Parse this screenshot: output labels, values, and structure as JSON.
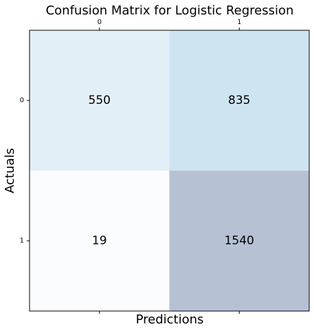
{
  "chart_data": {
    "type": "heatmap",
    "title": "Confusion Matrix for Logistic Regression",
    "xlabel": "Predictions",
    "ylabel": "Actuals",
    "x_categories": [
      "0",
      "1"
    ],
    "y_categories": [
      "0",
      "1"
    ],
    "values": [
      [
        550,
        835
      ],
      [
        19,
        1540
      ]
    ],
    "colormap": "Blues",
    "cell_colors": [
      [
        "#e3eff7",
        "#cee4f1"
      ],
      [
        "#fbfcfe",
        "#b6c1d3"
      ]
    ],
    "grid": false
  }
}
